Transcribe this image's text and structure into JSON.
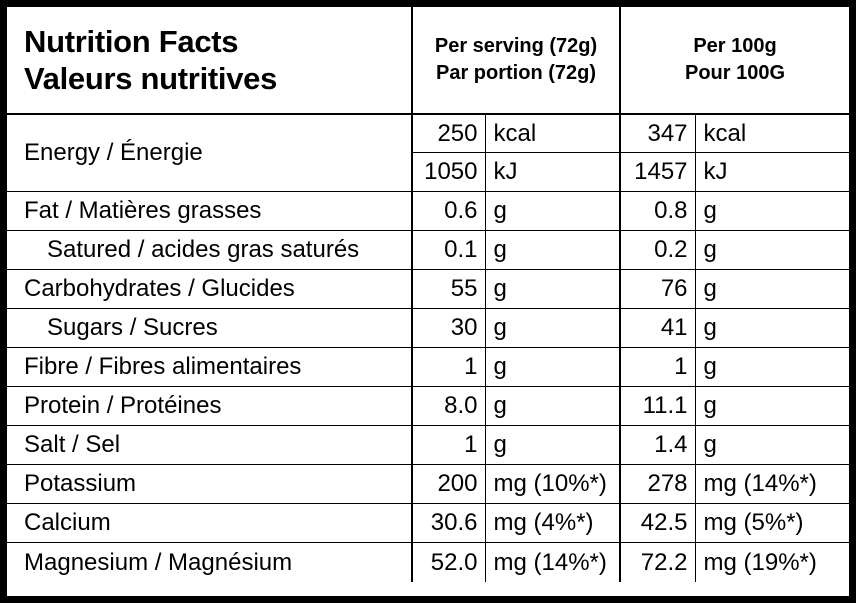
{
  "header": {
    "title_en": "Nutrition Facts",
    "title_fr": "Valeurs nutritives",
    "per_serving_en": "Per serving (72g)",
    "per_serving_fr": "Par portion (72g)",
    "per_100_en": "Per 100g",
    "per_100_fr": "Pour 100G"
  },
  "energy": {
    "label": "Energy / Énergie",
    "kcal": {
      "serving": "250",
      "unit": "kcal",
      "per100": "347",
      "unit100": "kcal"
    },
    "kj": {
      "serving": "1050",
      "unit": "kJ",
      "per100": "1457",
      "unit100": "kJ"
    }
  },
  "rows": [
    {
      "label": "Fat / Matières grasses",
      "serving": "0.6",
      "unit": "g",
      "per100": "0.8",
      "unit100": "g",
      "sub": false
    },
    {
      "label": "Satured / acides gras saturés",
      "serving": "0.1",
      "unit": "g",
      "per100": "0.2",
      "unit100": "g",
      "sub": true
    },
    {
      "label": "Carbohydrates / Glucides",
      "serving": "55",
      "unit": "g",
      "per100": "76",
      "unit100": "g",
      "sub": false
    },
    {
      "label": "Sugars / Sucres",
      "serving": "30",
      "unit": "g",
      "per100": "41",
      "unit100": "g",
      "sub": true
    },
    {
      "label": "Fibre / Fibres alimentaires",
      "serving": "1",
      "unit": "g",
      "per100": "1",
      "unit100": "g",
      "sub": false
    },
    {
      "label": "Protein / Protéines",
      "serving": "8.0",
      "unit": "g",
      "per100": "11.1",
      "unit100": "g",
      "sub": false
    },
    {
      "label": "Salt / Sel",
      "serving": "1",
      "unit": "g",
      "per100": "1.4",
      "unit100": "g",
      "sub": false
    },
    {
      "label": "Potassium",
      "serving": "200",
      "unit": "mg (10%*)",
      "per100": "278",
      "unit100": "mg (14%*)",
      "sub": false
    },
    {
      "label": "Calcium",
      "serving": "30.6",
      "unit": "mg (4%*)",
      "per100": "42.5",
      "unit100": "mg (5%*)",
      "sub": false
    },
    {
      "label": "Magnesium / Magnésium",
      "serving": "52.0",
      "unit": "mg (14%*)",
      "per100": "72.2",
      "unit100": "mg (19%*)",
      "sub": false
    }
  ]
}
